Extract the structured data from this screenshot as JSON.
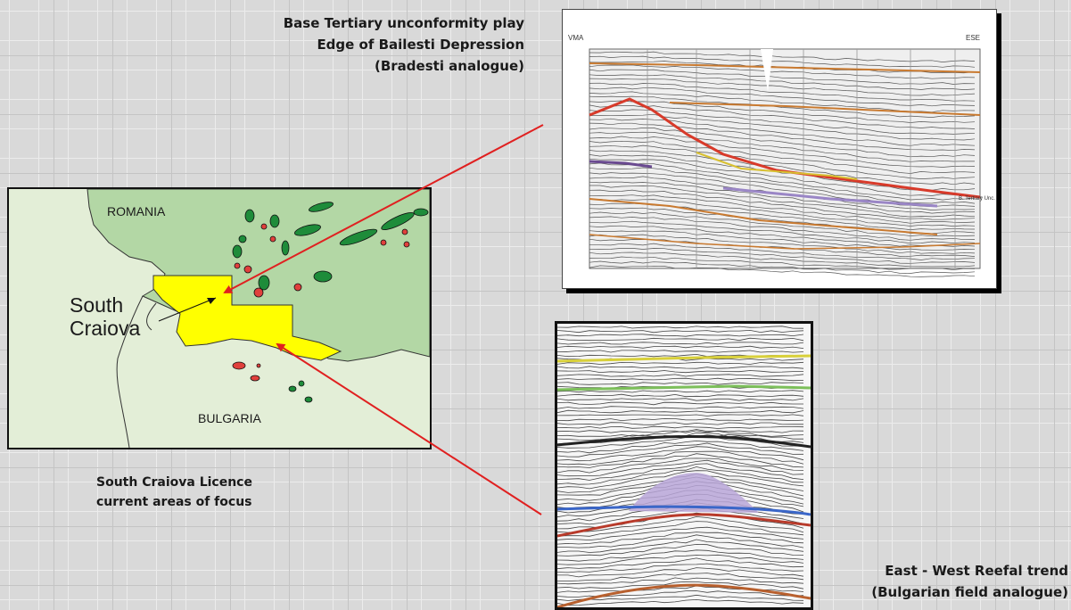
{
  "captions": {
    "top": [
      "Base Tertiary unconformity play",
      "Edge of Bailesti Depression",
      "(Bradesti analogue)"
    ],
    "left": [
      "South Craiova Licence",
      "current areas of  focus"
    ],
    "bottom": [
      "East - West  Reefal trend",
      "(Bulgarian field analogue)"
    ]
  },
  "map": {
    "label_north": "ROMANIA",
    "label_south": "BULGARIA",
    "licence_label": [
      "South",
      "Craiova"
    ],
    "colors": {
      "land_romania": "#b3d7a5",
      "land_bulgaria": "#e3eed7",
      "licence": "#ffff00",
      "gas_field": "#1e8c3a",
      "oil_field": "#e0403c"
    }
  },
  "seismic_top": {
    "label_left": "VMA",
    "label_right": "ESE",
    "horizon_label": "B. Tertiary Unc."
  },
  "arrows": {
    "color": "#e02020"
  }
}
